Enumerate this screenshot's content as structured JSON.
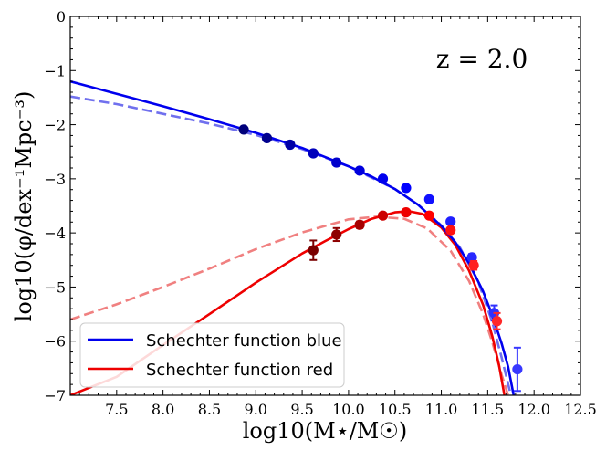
{
  "chart_data": {
    "type": "line",
    "title": "",
    "xlabel": "log10(M⋆/M☉)",
    "ylabel": "log10(φ/dex⁻¹Mpc⁻³)",
    "xlim": [
      7.0,
      12.5
    ],
    "ylim": [
      -7,
      0
    ],
    "xticks": [
      7.5,
      8.0,
      8.5,
      9.0,
      9.5,
      10.0,
      10.5,
      11.0,
      11.5,
      12.0,
      12.5
    ],
    "xtick_labels": [
      "7.5",
      "8.0",
      "8.5",
      "9.0",
      "9.5",
      "10.0",
      "10.5",
      "11.0",
      "11.5",
      "12.0",
      "12.5"
    ],
    "yticks": [
      0,
      -1,
      -2,
      -3,
      -4,
      -5,
      -6,
      -7
    ],
    "ytick_labels": [
      "0",
      "−1",
      "−2",
      "−3",
      "−4",
      "−5",
      "−6",
      "−7"
    ],
    "grid": false,
    "annotation": "z = 2.0",
    "legend": {
      "position": "lower-left",
      "entries": [
        {
          "label": "Schechter function blue",
          "color": "#0000ee"
        },
        {
          "label": "Schechter function red",
          "color": "#ee0000"
        }
      ]
    },
    "series": [
      {
        "name": "Schechter function blue",
        "kind": "line",
        "style": "solid",
        "color": "#0000ee",
        "x": [
          7.0,
          7.5,
          8.0,
          8.5,
          9.0,
          9.5,
          10.0,
          10.25,
          10.5,
          10.75,
          11.0,
          11.15,
          11.3,
          11.45,
          11.55,
          11.65,
          11.72,
          11.78
        ],
        "y": [
          -1.2,
          -1.43,
          -1.66,
          -1.9,
          -2.15,
          -2.43,
          -2.77,
          -2.96,
          -3.19,
          -3.48,
          -3.87,
          -4.17,
          -4.56,
          -5.08,
          -5.52,
          -6.04,
          -6.47,
          -7.0
        ]
      },
      {
        "name": "Schechter fit blue (alt)",
        "kind": "line",
        "style": "dashed",
        "color": "#7070ee",
        "x": [
          7.0,
          7.5,
          8.0,
          8.5,
          9.0,
          9.5,
          10.0,
          10.5,
          10.75,
          11.0,
          11.2,
          11.4,
          11.55,
          11.65,
          11.75
        ],
        "y": [
          -1.48,
          -1.62,
          -1.8,
          -1.98,
          -2.19,
          -2.45,
          -2.77,
          -3.19,
          -3.48,
          -3.86,
          -4.27,
          -4.91,
          -5.65,
          -6.3,
          -7.0
        ]
      },
      {
        "name": "Schechter function red",
        "kind": "line",
        "style": "solid",
        "color": "#ee0000",
        "x": [
          7.0,
          7.5,
          8.0,
          8.5,
          9.0,
          9.5,
          9.75,
          10.0,
          10.25,
          10.5,
          10.65,
          10.8,
          11.0,
          11.15,
          11.3,
          11.45,
          11.55,
          11.62,
          11.68
        ],
        "y": [
          -7.0,
          -6.66,
          -6.07,
          -5.5,
          -4.92,
          -4.38,
          -4.15,
          -3.93,
          -3.74,
          -3.62,
          -3.6,
          -3.65,
          -3.9,
          -4.22,
          -4.7,
          -5.33,
          -5.91,
          -6.43,
          -7.0
        ]
      },
      {
        "name": "Schechter fit red (alt)",
        "kind": "line",
        "style": "dashed",
        "color": "#f08080",
        "x": [
          7.0,
          7.5,
          8.0,
          8.5,
          9.0,
          9.5,
          10.0,
          10.3,
          10.6,
          10.85,
          11.1,
          11.3,
          11.45,
          11.55,
          11.65,
          11.72
        ],
        "y": [
          -5.6,
          -5.32,
          -5.0,
          -4.66,
          -4.3,
          -3.99,
          -3.75,
          -3.7,
          -3.74,
          -3.92,
          -4.33,
          -4.89,
          -5.5,
          -6.02,
          -6.62,
          -7.0
        ]
      },
      {
        "name": "blue data",
        "kind": "scatter",
        "x": [
          8.87,
          9.12,
          9.37,
          9.62,
          9.87,
          10.12,
          10.37,
          10.62,
          10.87,
          11.1,
          11.33,
          11.57,
          11.82
        ],
        "y": [
          -2.09,
          -2.25,
          -2.37,
          -2.53,
          -2.7,
          -2.85,
          -3.0,
          -3.17,
          -3.38,
          -3.79,
          -4.45,
          -5.48,
          -6.52
        ],
        "yerr": [
          0.0,
          0.0,
          0.0,
          0.0,
          0.0,
          0.0,
          0.0,
          0.0,
          0.0,
          0.0,
          0.06,
          0.14,
          0.4
        ],
        "colors": [
          "#00007a",
          "#00008e",
          "#0000a6",
          "#0000bb",
          "#0000cc",
          "#0000dd",
          "#0000ee",
          "#0000ff",
          "#1010ff",
          "#2020ff",
          "#2828ff",
          "#3030ff",
          "#3838ff"
        ]
      },
      {
        "name": "red data",
        "kind": "scatter",
        "x": [
          9.62,
          9.87,
          10.12,
          10.37,
          10.62,
          10.87,
          11.1,
          11.35,
          11.6
        ],
        "y": [
          -4.32,
          -4.03,
          -3.85,
          -3.68,
          -3.62,
          -3.68,
          -3.95,
          -4.6,
          -5.63
        ],
        "yerr": [
          0.18,
          0.12,
          0.06,
          0.04,
          0.03,
          0.03,
          0.05,
          0.08,
          0.15
        ],
        "colors": [
          "#7a0000",
          "#8e0000",
          "#a60000",
          "#cc0000",
          "#ee0000",
          "#ff0000",
          "#ff1010",
          "#ff2020",
          "#ff2828"
        ]
      }
    ]
  }
}
